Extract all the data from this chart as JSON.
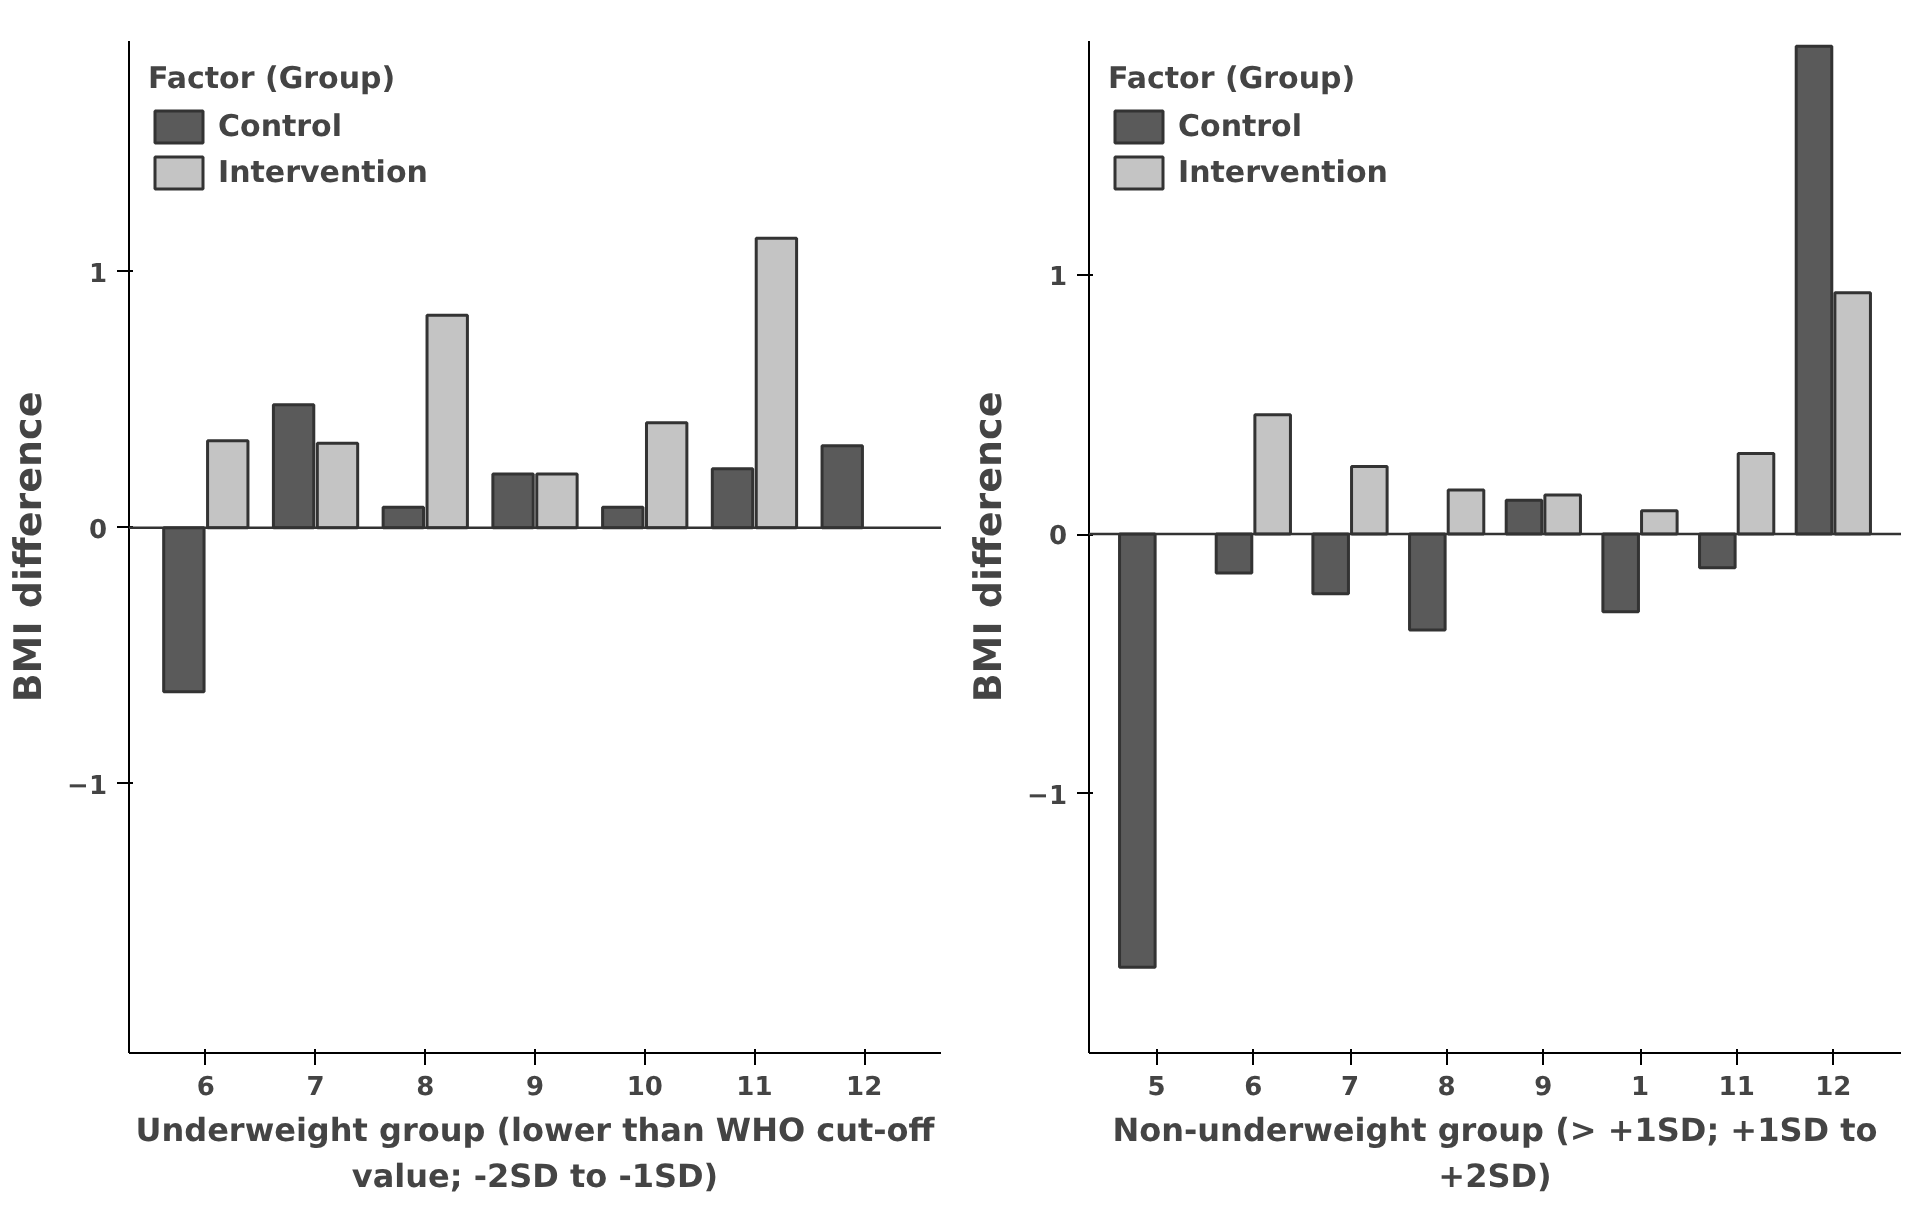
{
  "chart_data": [
    {
      "type": "bar",
      "xlabel": "Underweight group (lower than WHO cut-off value; -2SD to -1SD)",
      "ylabel": "BMI difference",
      "legend_title": "Factor (Group)",
      "legend": "top left",
      "categories": [
        "6",
        "7",
        "8",
        "9",
        "10",
        "11",
        "12"
      ],
      "ylim": [
        -2.05,
        1.9
      ],
      "yticks": [
        -1,
        0,
        1
      ],
      "series": [
        {
          "name": "Control",
          "color": "#5a5a5a",
          "values": [
            -0.64,
            0.48,
            0.08,
            0.21,
            0.08,
            0.23,
            0.32
          ]
        },
        {
          "name": "Intervention",
          "color": "#c4c4c4",
          "values": [
            0.34,
            0.33,
            0.83,
            0.21,
            0.41,
            1.13,
            null
          ]
        }
      ]
    },
    {
      "type": "bar",
      "xlabel": "Non-underweight group (> +1SD; +1SD to +2SD)",
      "ylabel": "BMI difference",
      "legend_title": "Factor (Group)",
      "legend": "top left",
      "categories": [
        "5",
        "6",
        "7",
        "8",
        "9",
        "1",
        "11",
        "12"
      ],
      "ylim": [
        -2.0,
        1.9
      ],
      "yticks": [
        -1,
        0,
        1
      ],
      "series": [
        {
          "name": "Control",
          "color": "#5a5a5a",
          "values": [
            -1.67,
            -0.15,
            -0.23,
            -0.37,
            0.13,
            -0.3,
            -0.13,
            1.88
          ]
        },
        {
          "name": "Intervention",
          "color": "#c4c4c4",
          "values": [
            null,
            0.46,
            0.26,
            0.17,
            0.15,
            0.09,
            0.31,
            0.93
          ]
        }
      ]
    }
  ]
}
